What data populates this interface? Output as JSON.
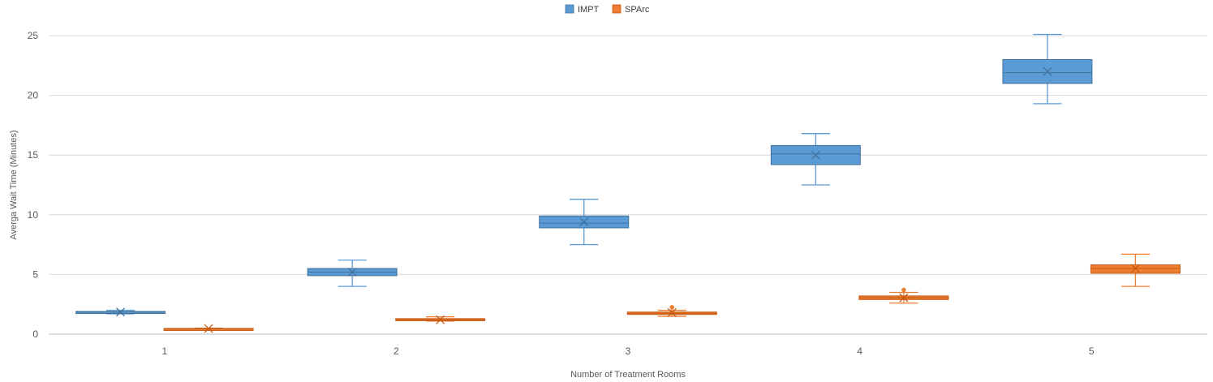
{
  "chart_data": {
    "type": "box",
    "title": "",
    "xlabel": "Number of Treatment Rooms",
    "ylabel": "Averga Wait Time (Minutes)",
    "categories": [
      "1",
      "2",
      "3",
      "4",
      "5"
    ],
    "ylim": [
      0,
      25
    ],
    "yticks": [
      0,
      5,
      10,
      15,
      20,
      25
    ],
    "grid": "horizontal",
    "legend": "top-center",
    "series": [
      {
        "name": "IMPT",
        "color": "#5B9BD5",
        "edge_color": "#41719C",
        "boxes": [
          {
            "category": "1",
            "min": 1.7,
            "q1": 1.8,
            "median": 1.85,
            "q3": 1.9,
            "max": 2.0,
            "mean": 1.85,
            "outliers": []
          },
          {
            "category": "2",
            "min": 4.0,
            "q1": 4.9,
            "median": 5.2,
            "q3": 5.5,
            "max": 6.2,
            "mean": 5.2,
            "outliers": []
          },
          {
            "category": "3",
            "min": 7.5,
            "q1": 8.9,
            "median": 9.3,
            "q3": 9.9,
            "max": 11.3,
            "mean": 9.4,
            "outliers": []
          },
          {
            "category": "4",
            "min": 12.5,
            "q1": 14.2,
            "median": 15.1,
            "q3": 15.8,
            "max": 16.8,
            "mean": 15.0,
            "outliers": []
          },
          {
            "category": "5",
            "min": 19.3,
            "q1": 21.0,
            "median": 21.9,
            "q3": 23.0,
            "max": 25.1,
            "mean": 22.0,
            "outliers": []
          }
        ]
      },
      {
        "name": "SPArc",
        "color": "#ED7D31",
        "edge_color": "#C55A11",
        "boxes": [
          {
            "category": "1",
            "min": 0.45,
            "q1": 0.45,
            "median": 0.45,
            "q3": 0.48,
            "max": 0.5,
            "mean": 0.47,
            "outliers": []
          },
          {
            "category": "2",
            "min": 1.1,
            "q1": 1.15,
            "median": 1.2,
            "q3": 1.3,
            "max": 1.45,
            "mean": 1.2,
            "outliers": []
          },
          {
            "category": "3",
            "min": 1.5,
            "q1": 1.65,
            "median": 1.75,
            "q3": 1.85,
            "max": 2.0,
            "mean": 1.8,
            "outliers": [
              2.25
            ]
          },
          {
            "category": "4",
            "min": 2.6,
            "q1": 2.9,
            "median": 3.05,
            "q3": 3.2,
            "max": 3.5,
            "mean": 3.05,
            "outliers": [
              3.7
            ]
          },
          {
            "category": "5",
            "min": 4.0,
            "q1": 5.1,
            "median": 5.5,
            "q3": 5.8,
            "max": 6.7,
            "mean": 5.5,
            "outliers": []
          }
        ]
      }
    ]
  }
}
